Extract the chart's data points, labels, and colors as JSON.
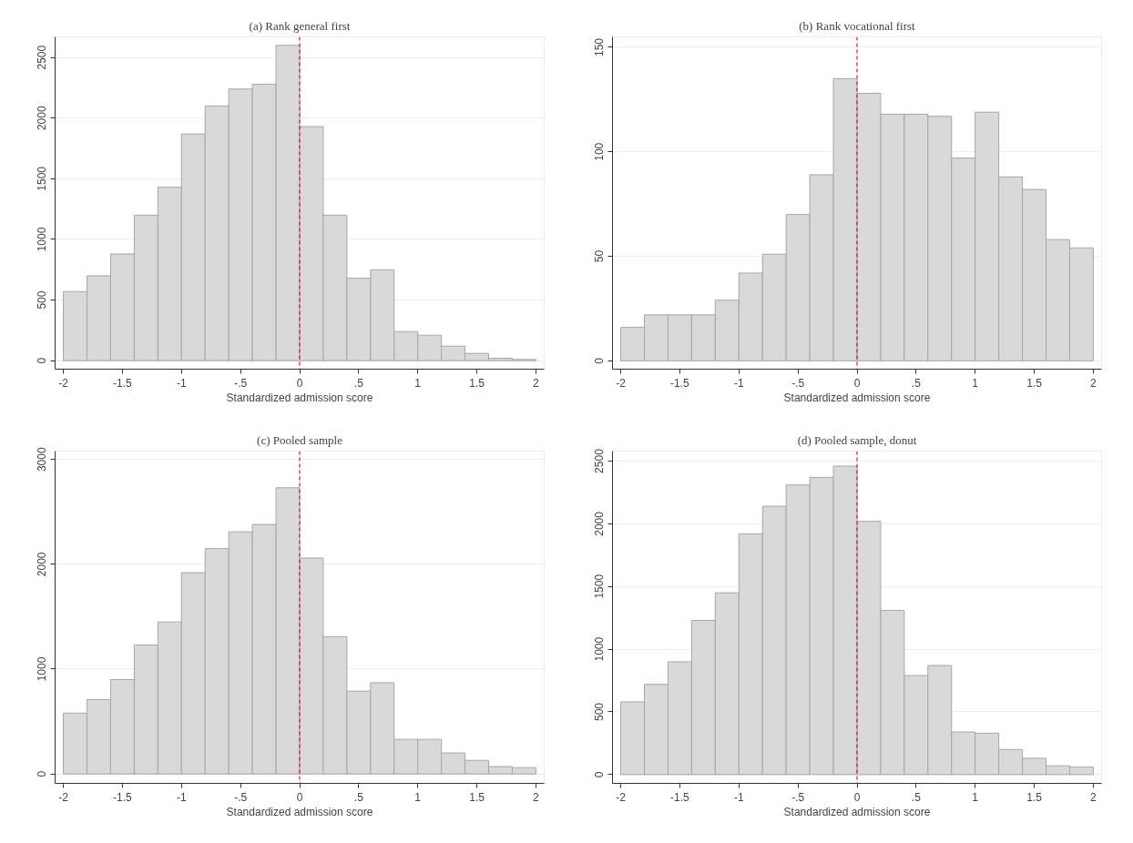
{
  "chart_data": [
    {
      "type": "histogram",
      "title": "(a) Rank general first",
      "xlabel": "Standardized admission score",
      "color": "#d9d9d9",
      "bins": [
        -2,
        -1.8,
        -1.6,
        -1.4,
        -1.2,
        -1,
        -0.8,
        -0.6,
        -0.4,
        -0.2,
        0,
        0.2,
        0.4,
        0.6,
        0.8,
        1,
        1.2,
        1.4,
        1.6,
        1.8,
        2
      ],
      "values": [
        570,
        700,
        880,
        1200,
        1430,
        1870,
        2100,
        2240,
        2280,
        2600,
        1930,
        1200,
        680,
        750,
        240,
        210,
        120,
        60,
        20,
        10
      ],
      "xlim": [
        -2.07,
        2.07
      ],
      "ylim": [
        -70,
        2670
      ],
      "xticks": [
        -2,
        {
          "value": -1.5,
          "label": "-1.5"
        },
        -1,
        {
          "value": -0.5,
          "label": "-.5"
        },
        0,
        {
          "value": 0.5,
          "label": ".5"
        },
        1,
        1.5,
        2
      ],
      "yticks": [
        0,
        500,
        1000,
        1500,
        2000,
        2500
      ],
      "ref_lines": [
        {
          "axis": "x",
          "value": 0,
          "color": "#d0104c",
          "line_style": "dashed"
        }
      ],
      "grid": "y"
    },
    {
      "type": "histogram",
      "title": "(b) Rank vocational first",
      "xlabel": "Standardized admission score",
      "color": "#d9d9d9",
      "bins": [
        -2,
        -1.8,
        -1.6,
        -1.4,
        -1.2,
        -1,
        -0.8,
        -0.6,
        -0.4,
        -0.2,
        0,
        0.2,
        0.4,
        0.6,
        0.8,
        1,
        1.2,
        1.4,
        1.6,
        1.8,
        2
      ],
      "values": [
        16,
        22,
        22,
        22,
        29,
        42,
        51,
        70,
        89,
        135,
        128,
        118,
        118,
        117,
        97,
        119,
        88,
        82,
        58,
        54
      ],
      "xlim": [
        -2.07,
        2.07
      ],
      "ylim": [
        -4,
        155
      ],
      "xticks": [
        -2,
        {
          "value": -1.5,
          "label": "-1.5"
        },
        -1,
        {
          "value": -0.5,
          "label": "-.5"
        },
        0,
        {
          "value": 0.5,
          "label": ".5"
        },
        1,
        1.5,
        2
      ],
      "yticks": [
        0,
        50,
        100,
        150
      ],
      "ref_lines": [
        {
          "axis": "x",
          "value": 0,
          "color": "#d0104c",
          "line_style": "dashed"
        }
      ],
      "grid": "y"
    },
    {
      "type": "histogram",
      "title": "(c) Pooled sample",
      "xlabel": "Standardized admission score",
      "color": "#d9d9d9",
      "bins": [
        -2,
        -1.8,
        -1.6,
        -1.4,
        -1.2,
        -1,
        -0.8,
        -0.6,
        -0.4,
        -0.2,
        0,
        0.2,
        0.4,
        0.6,
        0.8,
        1,
        1.2,
        1.4,
        1.6,
        1.8,
        2
      ],
      "values": [
        580,
        710,
        900,
        1230,
        1450,
        1920,
        2150,
        2310,
        2380,
        2730,
        2060,
        1310,
        790,
        870,
        330,
        330,
        200,
        130,
        70,
        60
      ],
      "xlim": [
        -2.07,
        2.07
      ],
      "ylim": [
        -90,
        3080
      ],
      "xticks": [
        -2,
        {
          "value": -1.5,
          "label": "-1.5"
        },
        -1,
        {
          "value": -0.5,
          "label": "-.5"
        },
        0,
        {
          "value": 0.5,
          "label": ".5"
        },
        1,
        1.5,
        2
      ],
      "yticks": [
        0,
        1000,
        2000,
        3000
      ],
      "ref_lines": [
        {
          "axis": "x",
          "value": 0,
          "color": "#d0104c",
          "line_style": "dashed"
        }
      ],
      "grid": "y"
    },
    {
      "type": "histogram",
      "title": "(d) Pooled sample, donut",
      "xlabel": "Standardized admission score",
      "color": "#d9d9d9",
      "bins": [
        -2,
        -1.8,
        -1.6,
        -1.4,
        -1.2,
        -1,
        -0.8,
        -0.6,
        -0.4,
        -0.2,
        0,
        0.2,
        0.4,
        0.6,
        0.8,
        1,
        1.2,
        1.4,
        1.6,
        1.8,
        2
      ],
      "values": [
        580,
        720,
        900,
        1230,
        1450,
        1920,
        2140,
        2310,
        2370,
        2460,
        2020,
        1310,
        790,
        870,
        340,
        330,
        200,
        130,
        70,
        60
      ],
      "xlim": [
        -2.07,
        2.07
      ],
      "ylim": [
        -70,
        2580
      ],
      "xticks": [
        -2,
        {
          "value": -1.5,
          "label": "-1.5"
        },
        -1,
        {
          "value": -0.5,
          "label": "-.5"
        },
        0,
        {
          "value": 0.5,
          "label": ".5"
        },
        1,
        1.5,
        2
      ],
      "yticks": [
        0,
        500,
        1000,
        1500,
        2000,
        2500
      ],
      "ref_lines": [
        {
          "axis": "x",
          "value": 0,
          "color": "#d0104c",
          "line_style": "dashed"
        }
      ],
      "grid": "y"
    }
  ]
}
